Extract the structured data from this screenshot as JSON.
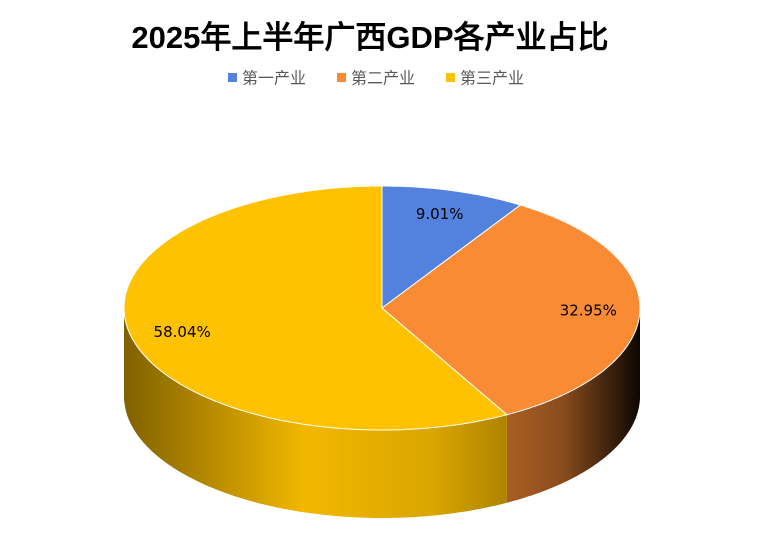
{
  "chart_data": {
    "type": "pie",
    "title": "2025年上半年广西GDP各产业占比",
    "categories": [
      "第一产业",
      "第二产业",
      "第三产业"
    ],
    "values": [
      9.01,
      32.95,
      58.04
    ],
    "value_labels": [
      "9.01%",
      "32.95%",
      "58.04%"
    ],
    "colors": [
      "#5282dd",
      "#f98b35",
      "#ffc200"
    ],
    "legend": "top"
  }
}
